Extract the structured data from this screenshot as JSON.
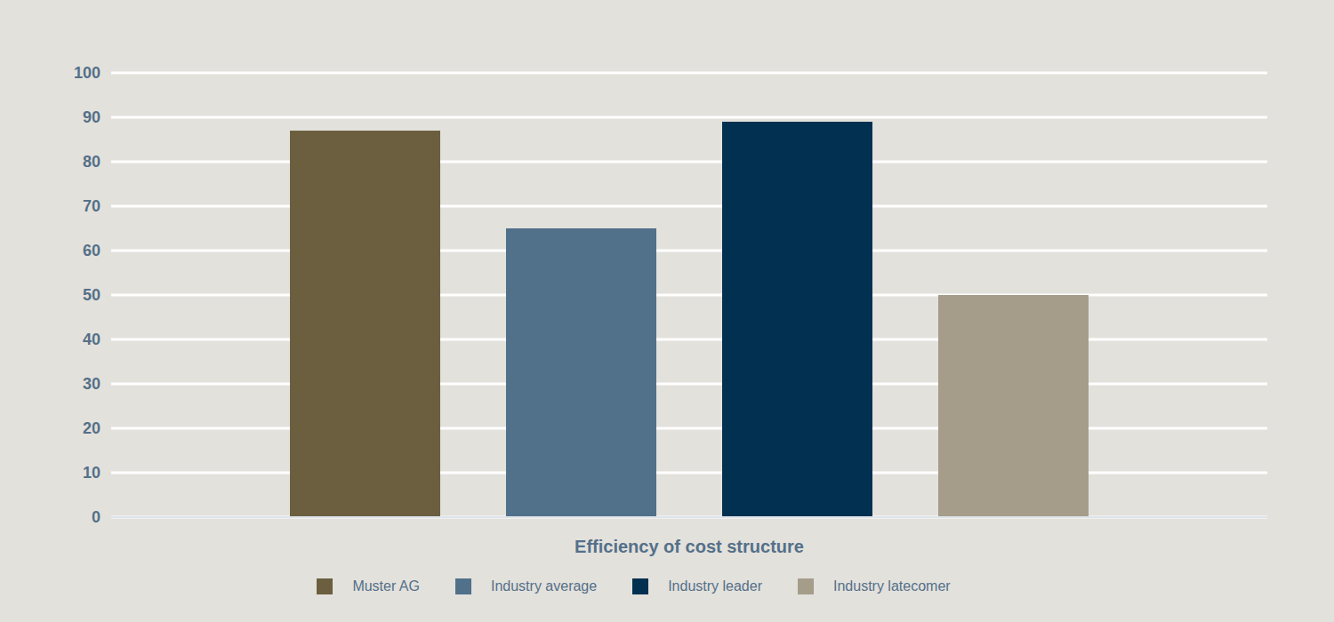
{
  "chart_data": {
    "type": "bar",
    "categories": [
      "Efficiency of cost structure"
    ],
    "series": [
      {
        "name": "Muster AG",
        "color": "#6b5f40",
        "values": [
          87
        ]
      },
      {
        "name": "Industry average",
        "color": "#517089",
        "values": [
          65
        ]
      },
      {
        "name": "Industry leader",
        "color": "#023050",
        "values": [
          89
        ]
      },
      {
        "name": "Industry latecomer",
        "color": "#a59d8a",
        "values": [
          50
        ]
      }
    ],
    "ylim": [
      0,
      100
    ],
    "yticks": [
      0,
      10,
      20,
      30,
      40,
      50,
      60,
      70,
      80,
      90,
      100
    ],
    "grid": true,
    "legend": "bottom"
  }
}
